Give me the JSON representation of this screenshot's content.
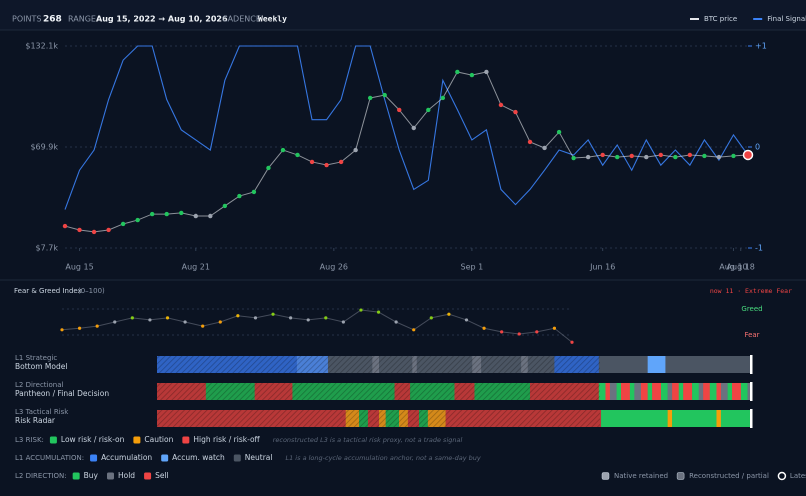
{
  "header": {
    "points_label": "POINTS",
    "points": 268,
    "range_label": "RANGE",
    "range": "Aug 15, 2022 → Aug 10, 2026",
    "cadence_label": "CADENCE",
    "cadence": "Weekly"
  },
  "chart_data": [
    {
      "type": "line",
      "legend_position": "top-right",
      "grid": true,
      "xlim": [
        0,
        47
      ],
      "ylim": [
        7.7,
        132.1
      ],
      "yticks": [
        {
          "value": 132.1,
          "label": "$132.1k"
        },
        {
          "value": 69.9,
          "label": "$69.9k"
        },
        {
          "value": 7.7,
          "label": "$7.7k"
        }
      ],
      "y2lim": [
        -1,
        1
      ],
      "y2ticks": [
        {
          "value": 1,
          "label": "+1"
        },
        0,
        -1
      ],
      "xticks": [
        {
          "value": 1,
          "label": "Aug 15"
        },
        {
          "value": 9,
          "label": "Aug 21"
        },
        {
          "value": 18.5,
          "label": "Aug 26"
        },
        {
          "value": 28,
          "label": "Sep 1"
        },
        {
          "value": 37,
          "label": "Jun 16"
        },
        {
          "value": 46,
          "label": "Aug 10"
        },
        {
          "value": 46.5,
          "label": "Aug 18"
        }
      ],
      "series": [
        {
          "name": "BTC price",
          "color": "#e5e7eb",
          "values": [
            21.2,
            18.8,
            17.6,
            18.8,
            22.5,
            24.9,
            28.6,
            28.6,
            29.3,
            27.4,
            27.4,
            33.6,
            39.7,
            42.2,
            57.0,
            68.0,
            65.0,
            60.7,
            58.8,
            60.7,
            68.0,
            100.1,
            101.9,
            92.7,
            81.6,
            92.7,
            100.1,
            116.1,
            114.2,
            116.1,
            95.8,
            91.4,
            73.0,
            69.3,
            79.1,
            63.1,
            63.7,
            65.0,
            63.7,
            64.4,
            63.7,
            65.0,
            63.7,
            65.0,
            64.4,
            63.7,
            64.4,
            65.0
          ],
          "point_colors": [
            "#ef4444",
            "#ef4444",
            "#ef4444",
            "#ef4444",
            "#22c55e",
            "#22c55e",
            "#22c55e",
            "#22c55e",
            "#22c55e",
            "#9ca3af",
            "#9ca3af",
            "#22c55e",
            "#22c55e",
            "#22c55e",
            "#22c55e",
            "#22c55e",
            "#22c55e",
            "#ef4444",
            "#ef4444",
            "#ef4444",
            "#9ca3af",
            "#22c55e",
            "#22c55e",
            "#ef4444",
            "#9ca3af",
            "#22c55e",
            "#22c55e",
            "#22c55e",
            "#22c55e",
            "#9ca3af",
            "#ef4444",
            "#ef4444",
            "#ef4444",
            "#9ca3af",
            "#22c55e",
            "#22c55e",
            "#9ca3af",
            "#ef4444",
            "#22c55e",
            "#ef4444",
            "#9ca3af",
            "#ef4444",
            "#22c55e",
            "#ef4444",
            "#22c55e",
            "#9ca3af",
            "#22c55e",
            "#ef4444"
          ]
        },
        {
          "name": "Final Signal",
          "color": "#3b82f6",
          "axis": "y2",
          "values": [
            -0.62,
            -0.23,
            -0.03,
            0.47,
            0.86,
            1,
            1,
            0.47,
            0.17,
            0.07,
            -0.03,
            0.66,
            1,
            1,
            1,
            1,
            1,
            0.27,
            0.27,
            0.47,
            1,
            1,
            0.47,
            -0.03,
            -0.42,
            -0.33,
            0.66,
            0.37,
            0.07,
            0.17,
            -0.42,
            -0.57,
            -0.42,
            -0.23,
            -0.03,
            -0.08,
            0.07,
            -0.18,
            0.02,
            -0.23,
            0.07,
            -0.18,
            -0.03,
            -0.18,
            0.07,
            -0.13,
            0.12,
            -0.08
          ]
        }
      ]
    },
    {
      "type": "line",
      "title": "Fear & Greed Index",
      "subtitle": "(0–100)",
      "annotation": "now 11 · Extreme Fear",
      "xlim": [
        0,
        29
      ],
      "ylim": [
        0,
        100
      ],
      "yticks": [
        {
          "value": 75,
          "label": "Greed"
        },
        {
          "value": 25,
          "label": "Fear"
        }
      ],
      "series": [
        {
          "color": "#6b7280",
          "values": [
            35,
            38,
            42,
            50,
            58,
            54,
            58,
            50,
            42,
            50,
            62,
            58,
            65,
            58,
            54,
            58,
            50,
            73,
            69,
            50,
            35,
            58,
            65,
            54,
            38,
            31,
            27,
            31,
            38,
            11
          ],
          "point_colors": [
            "#f59e0b",
            "#f59e0b",
            "#f59e0b",
            "#9ca3af",
            "#84cc16",
            "#9ca3af",
            "#eab308",
            "#9ca3af",
            "#f59e0b",
            "#f59e0b",
            "#eab308",
            "#9ca3af",
            "#84cc16",
            "#9ca3af",
            "#9ca3af",
            "#84cc16",
            "#9ca3af",
            "#84cc16",
            "#84cc16",
            "#9ca3af",
            "#f59e0b",
            "#84cc16",
            "#eab308",
            "#9ca3af",
            "#f59e0b",
            "#ef4444",
            "#ef4444",
            "#ef4444",
            "#f59e0b",
            "#ef4444"
          ]
        }
      ]
    }
  ],
  "bands": [
    {
      "label": "L1 Strategic",
      "sublabel": "Bottom Model",
      "segments": [
        {
          "weeks": 63,
          "color": "#2f63c4"
        },
        {
          "weeks": 14,
          "color": "#4a7fd6"
        },
        {
          "weeks": 20,
          "color": "#4b5563"
        },
        {
          "weeks": 3,
          "color": "#6b7280"
        },
        {
          "weeks": 15,
          "color": "#4b5563"
        },
        {
          "weeks": 2,
          "color": "#6b7280"
        },
        {
          "weeks": 25,
          "color": "#4b5563"
        },
        {
          "weeks": 4,
          "color": "#6b7280"
        },
        {
          "weeks": 18,
          "color": "#4b5563"
        },
        {
          "weeks": 3,
          "color": "#6b7280"
        },
        {
          "weeks": 12,
          "color": "#4b5563"
        },
        {
          "weeks": 20,
          "color": "#2f63c4"
        },
        {
          "weeks": 22,
          "color": "#4b5563"
        },
        {
          "weeks": 8,
          "color": "#60a5fa"
        },
        {
          "weeks": 39,
          "color": "#4b5563"
        }
      ]
    },
    {
      "label": "L2 Directional",
      "sublabel": "Pantheon / Final Decision",
      "segments": [
        {
          "weeks": 22,
          "color": "#b83838"
        },
        {
          "weeks": 22,
          "color": "#1f9d4c"
        },
        {
          "weeks": 17,
          "color": "#b83838"
        },
        {
          "weeks": 46,
          "color": "#1f9d4c"
        },
        {
          "weeks": 7,
          "color": "#b83838"
        },
        {
          "weeks": 20,
          "color": "#1f9d4c"
        },
        {
          "weeks": 9,
          "color": "#b83838"
        },
        {
          "weeks": 25,
          "color": "#1f9d4c"
        },
        {
          "weeks": 31,
          "color": "#b83838"
        },
        {
          "weeks": 3,
          "color": "#22c55e"
        },
        {
          "weeks": 2,
          "color": "#ef4444"
        },
        {
          "weeks": 3,
          "color": "#6b7280"
        },
        {
          "weeks": 2,
          "color": "#22c55e"
        },
        {
          "weeks": 4,
          "color": "#ef4444"
        },
        {
          "weeks": 2,
          "color": "#22c55e"
        },
        {
          "weeks": 3,
          "color": "#6b7280"
        },
        {
          "weeks": 3,
          "color": "#ef4444"
        },
        {
          "weeks": 2,
          "color": "#22c55e"
        },
        {
          "weeks": 4,
          "color": "#ef4444"
        },
        {
          "weeks": 3,
          "color": "#22c55e"
        },
        {
          "weeks": 2,
          "color": "#6b7280"
        },
        {
          "weeks": 3,
          "color": "#ef4444"
        },
        {
          "weeks": 2,
          "color": "#22c55e"
        },
        {
          "weeks": 4,
          "color": "#ef4444"
        },
        {
          "weeks": 3,
          "color": "#22c55e"
        },
        {
          "weeks": 2,
          "color": "#6b7280"
        },
        {
          "weeks": 3,
          "color": "#ef4444"
        },
        {
          "weeks": 3,
          "color": "#22c55e"
        },
        {
          "weeks": 2,
          "color": "#ef4444"
        },
        {
          "weeks": 3,
          "color": "#6b7280"
        },
        {
          "weeks": 2,
          "color": "#22c55e"
        },
        {
          "weeks": 4,
          "color": "#ef4444"
        },
        {
          "weeks": 3,
          "color": "#22c55e"
        },
        {
          "weeks": 2,
          "color": "#6b7280"
        }
      ]
    },
    {
      "label": "L3 Tactical Risk",
      "sublabel": "Risk Radar",
      "segments": [
        {
          "weeks": 85,
          "color": "#b83838"
        },
        {
          "weeks": 6,
          "color": "#d4891a"
        },
        {
          "weeks": 4,
          "color": "#1f9d4c"
        },
        {
          "weeks": 5,
          "color": "#b83838"
        },
        {
          "weeks": 3,
          "color": "#d4891a"
        },
        {
          "weeks": 6,
          "color": "#1f9d4c"
        },
        {
          "weeks": 4,
          "color": "#d4891a"
        },
        {
          "weeks": 5,
          "color": "#b83838"
        },
        {
          "weeks": 4,
          "color": "#1f9d4c"
        },
        {
          "weeks": 8,
          "color": "#d4891a"
        },
        {
          "weeks": 7,
          "color": "#b83838"
        },
        {
          "weeks": 63,
          "color": "#b83838"
        },
        {
          "weeks": 30,
          "color": "#22c55e"
        },
        {
          "weeks": 2,
          "color": "#f59e0b"
        },
        {
          "weeks": 20,
          "color": "#22c55e"
        },
        {
          "weeks": 2,
          "color": "#f59e0b"
        },
        {
          "weeks": 14,
          "color": "#22c55e"
        }
      ]
    }
  ],
  "legend": [
    {
      "title": "L3 RISK:",
      "items": [
        {
          "label": "Low risk / risk-on",
          "color": "#22c55e"
        },
        {
          "label": "Caution",
          "color": "#f59e0b"
        },
        {
          "label": "High risk / risk-off",
          "color": "#ef4444"
        }
      ],
      "note": "reconstructed L3 is a tactical risk proxy, not a trade signal"
    },
    {
      "title": "L1 ACCUMULATION:",
      "items": [
        {
          "label": "Accumulation",
          "color": "#3b82f6"
        },
        {
          "label": "Accum. watch",
          "color": "#60a5fa"
        },
        {
          "label": "Neutral",
          "color": "#4b5563"
        }
      ],
      "note": "L1 is a long-cycle accumulation anchor, not a same-day buy"
    },
    {
      "title": "L2 DIRECTION:",
      "items": [
        {
          "label": "Buy",
          "color": "#22c55e"
        },
        {
          "label": "Hold",
          "color": "#6b7280"
        },
        {
          "label": "Sell",
          "color": "#ef4444"
        }
      ]
    }
  ],
  "status_legend": [
    {
      "label": "Native retained",
      "color": "#9ca3af"
    },
    {
      "label": "Reconstructed / partial",
      "color": "#6b7280"
    },
    {
      "label": "Latest",
      "color": "#ffffff"
    }
  ]
}
